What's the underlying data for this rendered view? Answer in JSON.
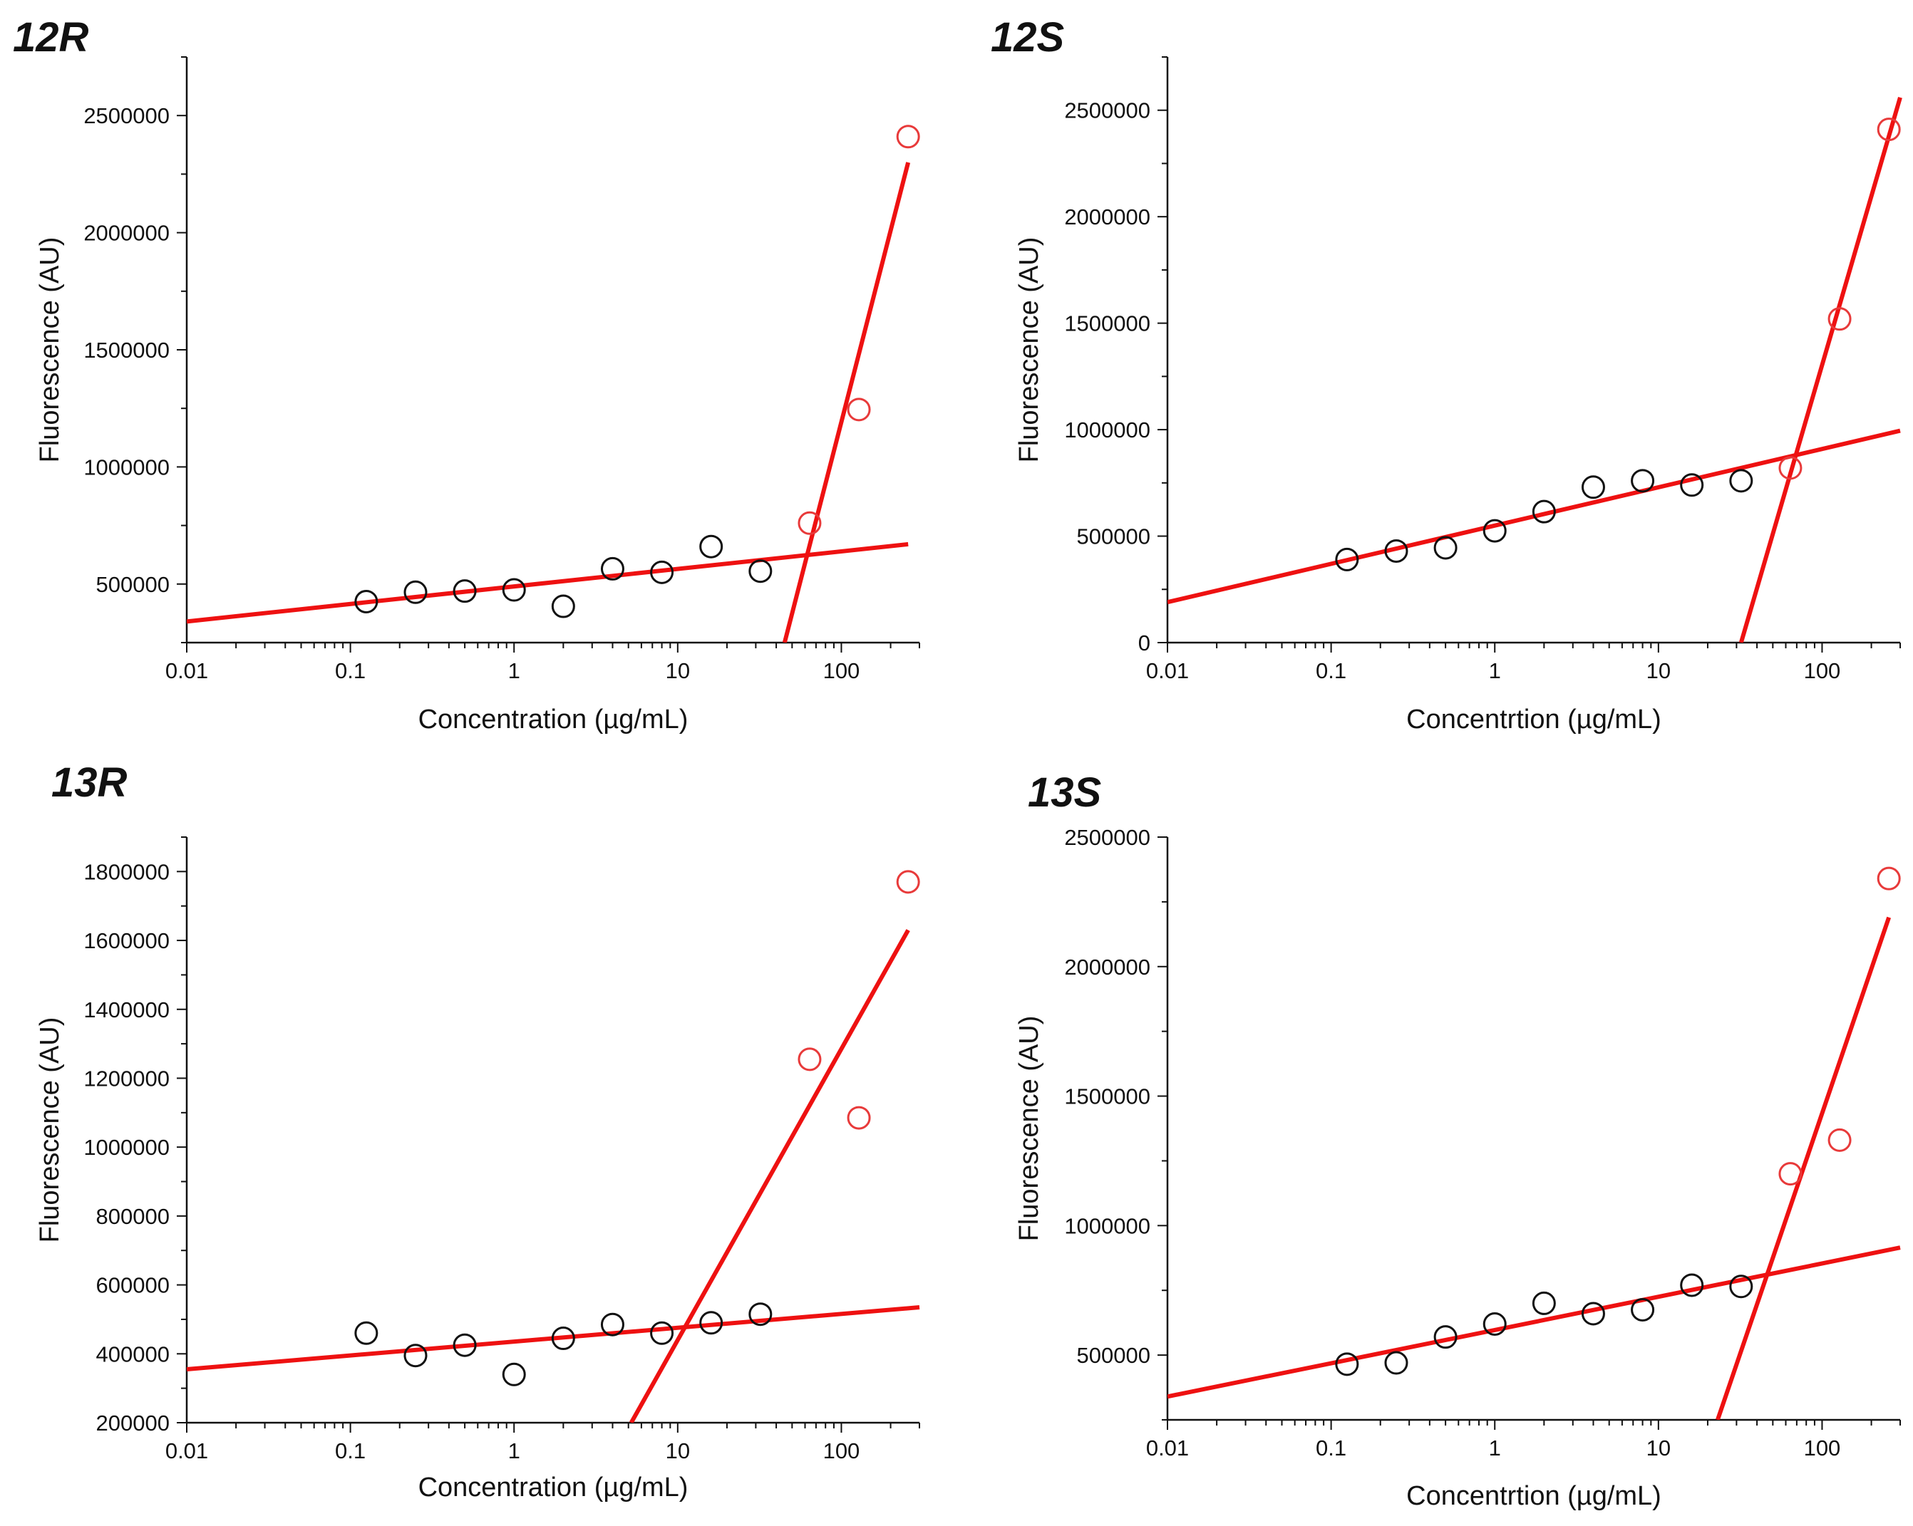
{
  "figure": {
    "colors": {
      "background": "#ffffff",
      "axis": "#111111",
      "fit_line": "#ee1111",
      "low_points": "#111111",
      "high_points": "#e83a3a"
    },
    "icons": {
      "point_marker": "open-circle-icon"
    }
  },
  "chart_data": [
    {
      "id": "12R",
      "type": "scatter",
      "title": "12R",
      "xlabel": "Concentration (µg/mL)",
      "ylabel": "Fluorescence (AU)",
      "x_scale": "log",
      "xlim": [
        0.01,
        300
      ],
      "ylim": [
        250000,
        2750000
      ],
      "xticks": [
        0.01,
        0.1,
        1,
        10,
        100
      ],
      "xtick_labels": [
        "0.01",
        "0.1",
        "1",
        "10",
        "100"
      ],
      "yticks": [
        500000,
        1000000,
        1500000,
        2000000,
        2500000
      ],
      "ytick_labels": [
        "500000",
        "1000000",
        "1500000",
        "2000000",
        "2500000"
      ],
      "grid": false,
      "series": [
        {
          "name": "baseline points",
          "color": "#111111",
          "x": [
            0.125,
            0.25,
            0.5,
            1,
            2,
            4,
            8,
            16,
            32
          ],
          "y": [
            425000,
            465000,
            470000,
            475000,
            405000,
            565000,
            550000,
            660000,
            555000
          ]
        },
        {
          "name": "high-concentration points",
          "color": "#e83a3a",
          "x": [
            64,
            128,
            256
          ],
          "y": [
            760000,
            1245000,
            2410000
          ]
        }
      ],
      "fit_lines": [
        {
          "name": "baseline fit",
          "x": [
            0.01,
            256
          ],
          "y": [
            340000,
            670000
          ]
        },
        {
          "name": "steep fit",
          "x": [
            45,
            256
          ],
          "y": [
            250000,
            2300000
          ]
        }
      ]
    },
    {
      "id": "12S",
      "type": "scatter",
      "title": "12S",
      "xlabel": "Concentrtion (µg/mL)",
      "ylabel": "Fluorescence (AU)",
      "x_scale": "log",
      "xlim": [
        0.01,
        300
      ],
      "ylim": [
        0,
        2750000
      ],
      "xticks": [
        0.01,
        0.1,
        1,
        10,
        100
      ],
      "xtick_labels": [
        "0.01",
        "0.1",
        "1",
        "10",
        "100"
      ],
      "yticks": [
        0,
        500000,
        1000000,
        1500000,
        2000000,
        2500000
      ],
      "ytick_labels": [
        "0",
        "500000",
        "1000000",
        "1500000",
        "2000000",
        "2500000"
      ],
      "grid": false,
      "series": [
        {
          "name": "baseline points",
          "color": "#111111",
          "x": [
            0.125,
            0.25,
            0.5,
            1,
            2,
            4,
            8,
            16,
            32
          ],
          "y": [
            390000,
            430000,
            445000,
            525000,
            615000,
            730000,
            760000,
            740000,
            760000
          ]
        },
        {
          "name": "high-concentration points",
          "color": "#e83a3a",
          "x": [
            64,
            128,
            256
          ],
          "y": [
            820000,
            1520000,
            2410000
          ]
        }
      ],
      "fit_lines": [
        {
          "name": "baseline fit",
          "x": [
            0.01,
            300
          ],
          "y": [
            190000,
            995000
          ]
        },
        {
          "name": "steep fit",
          "x": [
            32,
            300
          ],
          "y": [
            0,
            2560000
          ]
        }
      ]
    },
    {
      "id": "13R",
      "type": "scatter",
      "title": "13R",
      "xlabel": "Concentration (µg/mL)",
      "ylabel": "Fluorescence (AU)",
      "x_scale": "log",
      "xlim": [
        0.01,
        300
      ],
      "ylim": [
        200000,
        1900000
      ],
      "xticks": [
        0.01,
        0.1,
        1,
        10,
        100
      ],
      "xtick_labels": [
        "0.01",
        "0.1",
        "1",
        "10",
        "100"
      ],
      "yticks": [
        200000,
        400000,
        600000,
        800000,
        1000000,
        1200000,
        1400000,
        1600000,
        1800000
      ],
      "ytick_labels": [
        "200000",
        "400000",
        "600000",
        "800000",
        "1000000",
        "1200000",
        "1400000",
        "1600000",
        "1800000"
      ],
      "grid": false,
      "series": [
        {
          "name": "baseline points",
          "color": "#111111",
          "x": [
            0.125,
            0.25,
            0.5,
            1,
            2,
            4,
            8,
            16,
            32
          ],
          "y": [
            460000,
            395000,
            425000,
            340000,
            445000,
            485000,
            460000,
            490000,
            515000
          ]
        },
        {
          "name": "high-concentration points",
          "color": "#e83a3a",
          "x": [
            64,
            128,
            256
          ],
          "y": [
            1255000,
            1085000,
            1770000
          ]
        }
      ],
      "fit_lines": [
        {
          "name": "baseline fit",
          "x": [
            0.01,
            300
          ],
          "y": [
            355000,
            535000
          ]
        },
        {
          "name": "steep fit",
          "x": [
            5.2,
            256
          ],
          "y": [
            200000,
            1630000
          ]
        }
      ]
    },
    {
      "id": "13S",
      "type": "scatter",
      "title": "13S",
      "xlabel": "Concentrtion (µg/mL)",
      "ylabel": "Fluorescence (AU)",
      "x_scale": "log",
      "xlim": [
        0.01,
        300
      ],
      "ylim": [
        250000,
        2500000
      ],
      "xticks": [
        0.01,
        0.1,
        1,
        10,
        100
      ],
      "xtick_labels": [
        "0.01",
        "0.1",
        "1",
        "10",
        "100"
      ],
      "yticks": [
        500000,
        1000000,
        1500000,
        2000000,
        2500000
      ],
      "ytick_labels": [
        "500000",
        "1000000",
        "1500000",
        "2000000",
        "2500000"
      ],
      "grid": false,
      "series": [
        {
          "name": "baseline points",
          "color": "#111111",
          "x": [
            0.125,
            0.25,
            0.5,
            1,
            2,
            4,
            8,
            16,
            32
          ],
          "y": [
            465000,
            470000,
            570000,
            620000,
            700000,
            660000,
            675000,
            770000,
            765000
          ]
        },
        {
          "name": "high-concentration points",
          "color": "#e83a3a",
          "x": [
            64,
            128,
            256
          ],
          "y": [
            1200000,
            1330000,
            2340000
          ]
        }
      ],
      "fit_lines": [
        {
          "name": "baseline fit",
          "x": [
            0.01,
            300
          ],
          "y": [
            340000,
            915000
          ]
        },
        {
          "name": "steep fit",
          "x": [
            23,
            256
          ],
          "y": [
            250000,
            2190000
          ]
        }
      ]
    }
  ]
}
